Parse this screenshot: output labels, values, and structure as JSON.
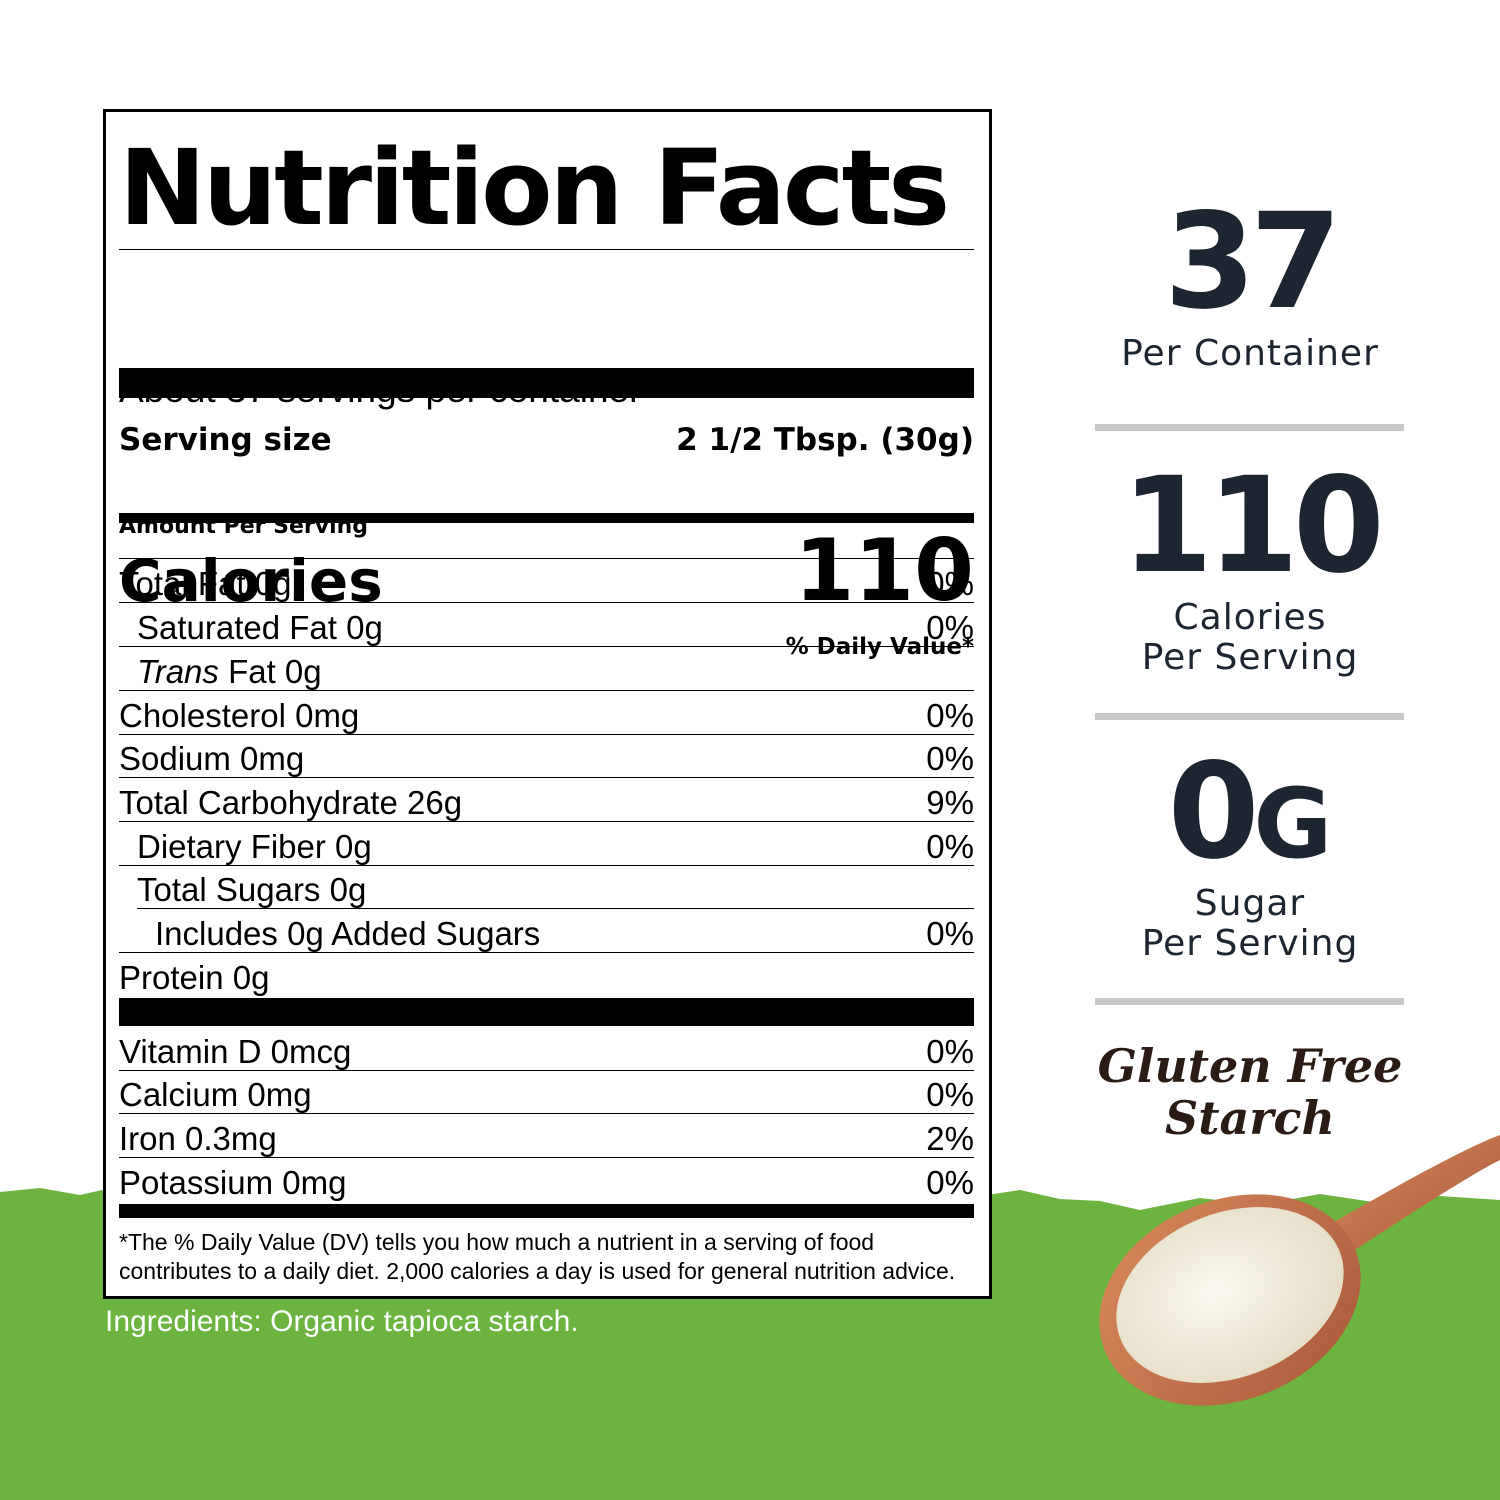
{
  "label": {
    "title": "Nutrition Facts",
    "servings_per_container": "About 37 servings per container",
    "serving_size_label": "Serving size",
    "serving_size_value": "2 1/2 Tbsp. (30g)",
    "amount_per_serving": "Amount Per Serving",
    "calories_label": "Calories",
    "calories_value": "110",
    "daily_value_header": "% Daily Value*",
    "nutrients": [
      {
        "name": "Total Fat  0g",
        "dv": "0%"
      },
      {
        "name": "Saturated Fat  0g",
        "dv": "0%"
      },
      {
        "name_italic": "Trans",
        "name": " Fat  0g",
        "dv": ""
      },
      {
        "name": "Cholesterol  0mg",
        "dv": "0%"
      },
      {
        "name": "Sodium  0mg",
        "dv": "0%"
      },
      {
        "name": "Total Carbohydrate  26g",
        "dv": "9%"
      },
      {
        "name": "Dietary Fiber  0g",
        "dv": "0%"
      },
      {
        "name": "Total Sugars  0g",
        "dv": ""
      },
      {
        "name": "Includes 0g Added Sugars",
        "dv": "0%"
      },
      {
        "name": "Protein  0g",
        "dv": ""
      }
    ],
    "vitamins": [
      {
        "name": "Vitamin D  0mcg",
        "dv": "0%"
      },
      {
        "name": "Calcium  0mg",
        "dv": "0%"
      },
      {
        "name": "Iron  0.3mg",
        "dv": "2%"
      },
      {
        "name": "Potassium 0mg",
        "dv": "0%"
      }
    ],
    "footnote": "*The % Daily Value (DV) tells you how much a nutrient in a serving of food contributes to a daily diet. 2,000 calories a day is used for general nutrition advice."
  },
  "ingredients": "Ingredients: Organic tapioca starch.",
  "highlights": {
    "servings_number": "37",
    "servings_caption": "Per Container",
    "calories_number": "110",
    "calories_caption_1": "Calories",
    "calories_caption_2": "Per Serving",
    "sugar_number": "0",
    "sugar_unit": "G",
    "sugar_caption_1": "Sugar",
    "sugar_caption_2": "Per Serving",
    "badge_line_1": "Gluten Free",
    "badge_line_2": "Starch"
  },
  "colors": {
    "green_band": "#6db340",
    "highlight_text": "#1d2530",
    "divider": "#c8c8c8",
    "spoon_wood": "#c8744a"
  }
}
